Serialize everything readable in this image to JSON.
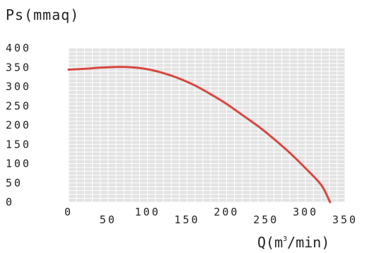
{
  "chart_data": {
    "type": "line",
    "title": "",
    "ylabel": "Ps(mmaq)",
    "xlabel_main": "Q(m",
    "xlabel_sup": "3",
    "xlabel_tail": "/min)",
    "xlim": [
      0,
      350
    ],
    "ylim": [
      0,
      400
    ],
    "x_ticks": [
      "0",
      "50",
      "100",
      "150",
      "200",
      "250",
      "300",
      "350"
    ],
    "y_ticks": [
      "400",
      "350",
      "300",
      "250",
      "200",
      "150",
      "100",
      "50",
      "0"
    ],
    "grid": true,
    "series": [
      {
        "color": "#d9463f",
        "x": [
          0,
          20,
          40,
          60,
          80,
          100,
          120,
          140,
          160,
          180,
          200,
          220,
          240,
          260,
          280,
          300,
          320,
          331
        ],
        "y": [
          344,
          346,
          349,
          351,
          350,
          345,
          335,
          321,
          303,
          280,
          255,
          226,
          197,
          164,
          128,
          88,
          44,
          0
        ]
      }
    ]
  },
  "colors": {
    "grid_fill": "#e3e3e3",
    "grid_line": "#ffffff",
    "curve": "#d9463f"
  }
}
